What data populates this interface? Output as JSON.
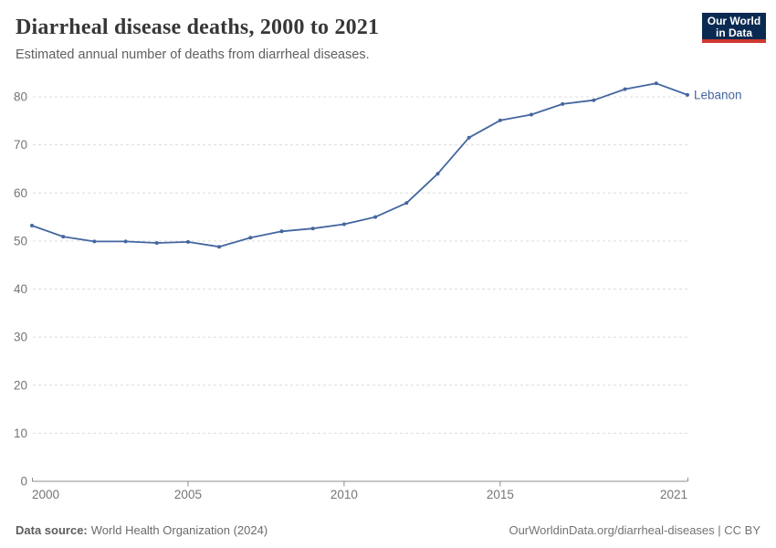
{
  "header": {
    "title": "Diarrheal disease deaths, 2000 to 2021",
    "subtitle": "Estimated annual number of deaths from diarrheal diseases.",
    "logo": {
      "line1": "Our World",
      "line2": "in Data"
    }
  },
  "footer": {
    "source_label": "Data source:",
    "source_text": "World Health Organization (2024)",
    "link_text": "OurWorldinData.org/diarrheal-diseases | CC BY"
  },
  "colors": {
    "line": "#44669f",
    "grid": "#dcdcdc",
    "axis": "#8c8c8c",
    "tick_label": "#757575",
    "logo_bg": "#0b2a51",
    "logo_accent": "#cf3830"
  },
  "chart_data": {
    "type": "line",
    "title": "Diarrheal disease deaths, 2000 to 2021",
    "subtitle": "Estimated annual number of deaths from diarrheal diseases.",
    "xlabel": "",
    "ylabel": "",
    "x": [
      2000,
      2001,
      2002,
      2003,
      2004,
      2005,
      2006,
      2007,
      2008,
      2009,
      2010,
      2011,
      2012,
      2013,
      2014,
      2015,
      2016,
      2017,
      2018,
      2019,
      2020,
      2021
    ],
    "series": [
      {
        "name": "Lebanon",
        "values": [
          53.2,
          50.9,
          49.9,
          49.9,
          49.6,
          49.8,
          48.8,
          50.7,
          52.0,
          52.6,
          53.5,
          55.0,
          57.9,
          64.0,
          71.5,
          75.1,
          76.3,
          78.5,
          79.3,
          81.6,
          82.8,
          80.4
        ]
      }
    ],
    "xticks": [
      2000,
      2005,
      2010,
      2015,
      2021
    ],
    "yticks": [
      0,
      10,
      20,
      30,
      40,
      50,
      60,
      70,
      80
    ],
    "xlim": [
      2000,
      2021
    ],
    "ylim": [
      0,
      84
    ],
    "grid": "horizontal-dashed",
    "legend": "end-of-line-label"
  }
}
